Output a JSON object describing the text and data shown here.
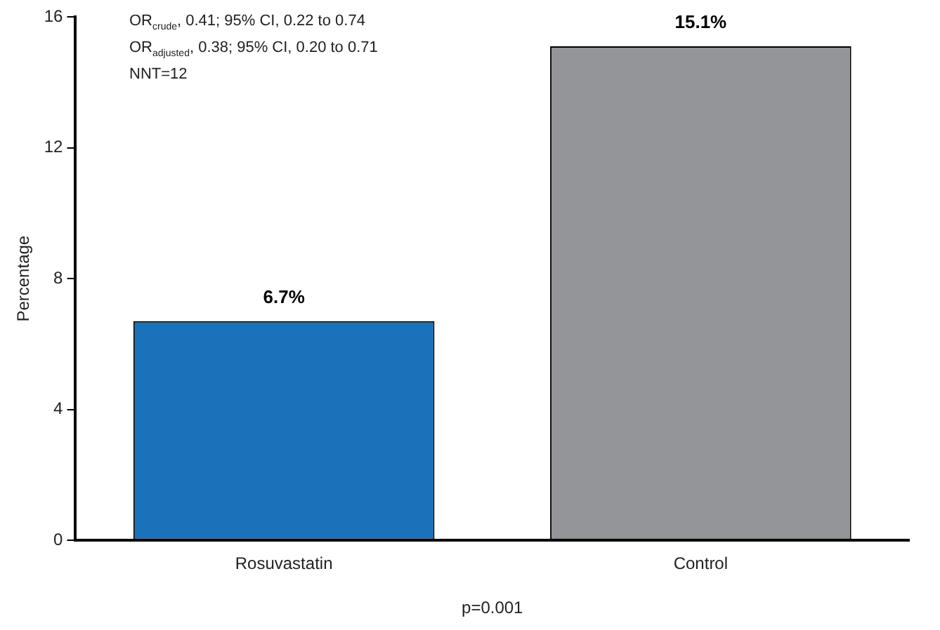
{
  "chart_data": {
    "type": "bar",
    "ylabel": "Percentage",
    "xlabel": "p=0.001",
    "categories": [
      "Rosuvastatin",
      "Control"
    ],
    "values": [
      6.7,
      15.1
    ],
    "value_labels": [
      "6.7%",
      "15.1%"
    ],
    "colors": [
      "#1a72bb",
      "#939598"
    ],
    "ylim": [
      0,
      16
    ],
    "yticks": [
      0,
      4,
      8,
      12,
      16
    ],
    "grid": false,
    "legend": false,
    "annotations": [
      "OR$_{crude}$, 0.41; 95% CI, 0.22 to 0.74",
      "OR$_{adjusted}$, 0.38; 95% CI, 0.20 to 0.71",
      "NNT=12"
    ]
  }
}
